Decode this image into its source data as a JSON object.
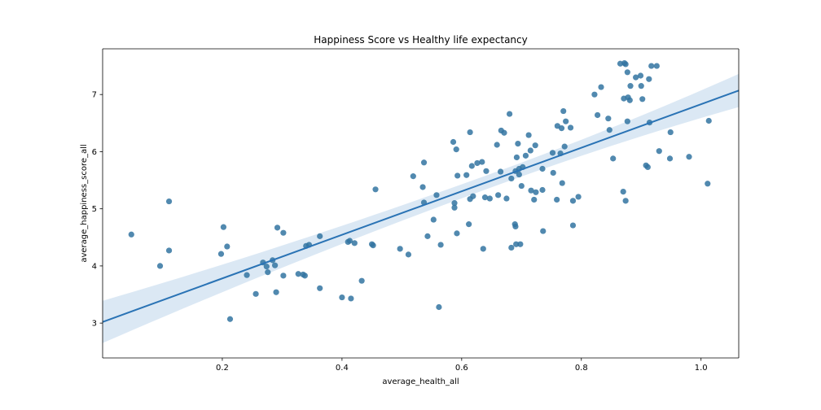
{
  "chart_data": {
    "type": "scatter",
    "title": "Happiness Score vs Healthy life expectancy",
    "xlabel": "average_health_all",
    "ylabel": "average_happiness_score_all",
    "xlim": [
      0.0,
      1.063
    ],
    "ylim": [
      2.39,
      7.8
    ],
    "xticks": [
      0.2,
      0.4,
      0.6,
      0.8,
      1.0
    ],
    "xtick_labels": [
      "0.2",
      "0.4",
      "0.6",
      "0.8",
      "1.0"
    ],
    "yticks": [
      3,
      4,
      5,
      6,
      7
    ],
    "ytick_labels": [
      "3",
      "4",
      "5",
      "6",
      "7"
    ],
    "grid": false,
    "colors": {
      "points": "#3274a1",
      "line": "#2a73b5",
      "band": "#c7dbee"
    },
    "regression": {
      "x": [
        0.0,
        1.063
      ],
      "y": [
        3.02,
        7.07
      ],
      "ci_lower": [
        2.64,
        6.77
      ],
      "ci_upper": [
        3.38,
        7.35
      ]
    },
    "points": [
      {
        "x": 0.048,
        "y": 4.55
      },
      {
        "x": 0.096,
        "y": 4.0
      },
      {
        "x": 0.111,
        "y": 4.27
      },
      {
        "x": 0.111,
        "y": 5.13
      },
      {
        "x": 0.198,
        "y": 4.21
      },
      {
        "x": 0.202,
        "y": 4.68
      },
      {
        "x": 0.208,
        "y": 4.34
      },
      {
        "x": 0.213,
        "y": 3.07
      },
      {
        "x": 0.241,
        "y": 3.84
      },
      {
        "x": 0.256,
        "y": 3.51
      },
      {
        "x": 0.268,
        "y": 4.06
      },
      {
        "x": 0.274,
        "y": 3.99
      },
      {
        "x": 0.276,
        "y": 3.89
      },
      {
        "x": 0.284,
        "y": 4.1
      },
      {
        "x": 0.288,
        "y": 4.01
      },
      {
        "x": 0.29,
        "y": 3.54
      },
      {
        "x": 0.292,
        "y": 4.67
      },
      {
        "x": 0.302,
        "y": 3.83
      },
      {
        "x": 0.302,
        "y": 4.58
      },
      {
        "x": 0.327,
        "y": 3.86
      },
      {
        "x": 0.335,
        "y": 3.85
      },
      {
        "x": 0.338,
        "y": 3.83
      },
      {
        "x": 0.34,
        "y": 4.35
      },
      {
        "x": 0.345,
        "y": 4.37
      },
      {
        "x": 0.363,
        "y": 3.61
      },
      {
        "x": 0.363,
        "y": 4.52
      },
      {
        "x": 0.4,
        "y": 3.45
      },
      {
        "x": 0.41,
        "y": 4.42
      },
      {
        "x": 0.413,
        "y": 4.44
      },
      {
        "x": 0.415,
        "y": 3.43
      },
      {
        "x": 0.421,
        "y": 4.4
      },
      {
        "x": 0.433,
        "y": 3.74
      },
      {
        "x": 0.45,
        "y": 4.38
      },
      {
        "x": 0.452,
        "y": 4.36
      },
      {
        "x": 0.456,
        "y": 5.34
      },
      {
        "x": 0.497,
        "y": 4.3
      },
      {
        "x": 0.511,
        "y": 4.2
      },
      {
        "x": 0.519,
        "y": 5.57
      },
      {
        "x": 0.535,
        "y": 5.38
      },
      {
        "x": 0.537,
        "y": 5.81
      },
      {
        "x": 0.537,
        "y": 5.11
      },
      {
        "x": 0.543,
        "y": 4.52
      },
      {
        "x": 0.553,
        "y": 4.81
      },
      {
        "x": 0.558,
        "y": 5.24
      },
      {
        "x": 0.562,
        "y": 3.28
      },
      {
        "x": 0.565,
        "y": 4.37
      },
      {
        "x": 0.586,
        "y": 6.17
      },
      {
        "x": 0.588,
        "y": 5.1
      },
      {
        "x": 0.588,
        "y": 5.02
      },
      {
        "x": 0.591,
        "y": 6.04
      },
      {
        "x": 0.592,
        "y": 4.57
      },
      {
        "x": 0.593,
        "y": 5.58
      },
      {
        "x": 0.608,
        "y": 5.59
      },
      {
        "x": 0.612,
        "y": 4.73
      },
      {
        "x": 0.614,
        "y": 6.34
      },
      {
        "x": 0.614,
        "y": 5.17
      },
      {
        "x": 0.617,
        "y": 5.75
      },
      {
        "x": 0.619,
        "y": 5.22
      },
      {
        "x": 0.626,
        "y": 5.8
      },
      {
        "x": 0.634,
        "y": 5.82
      },
      {
        "x": 0.636,
        "y": 4.3
      },
      {
        "x": 0.639,
        "y": 5.2
      },
      {
        "x": 0.641,
        "y": 5.66
      },
      {
        "x": 0.647,
        "y": 5.18
      },
      {
        "x": 0.659,
        "y": 6.12
      },
      {
        "x": 0.661,
        "y": 5.24
      },
      {
        "x": 0.665,
        "y": 5.65
      },
      {
        "x": 0.666,
        "y": 6.37
      },
      {
        "x": 0.671,
        "y": 6.33
      },
      {
        "x": 0.675,
        "y": 5.18
      },
      {
        "x": 0.68,
        "y": 6.66
      },
      {
        "x": 0.683,
        "y": 5.53
      },
      {
        "x": 0.683,
        "y": 4.32
      },
      {
        "x": 0.689,
        "y": 4.73
      },
      {
        "x": 0.69,
        "y": 5.66
      },
      {
        "x": 0.69,
        "y": 4.69
      },
      {
        "x": 0.691,
        "y": 4.38
      },
      {
        "x": 0.692,
        "y": 5.9
      },
      {
        "x": 0.694,
        "y": 6.14
      },
      {
        "x": 0.696,
        "y": 5.7
      },
      {
        "x": 0.696,
        "y": 5.6
      },
      {
        "x": 0.698,
        "y": 4.38
      },
      {
        "x": 0.7,
        "y": 5.4
      },
      {
        "x": 0.702,
        "y": 5.73
      },
      {
        "x": 0.707,
        "y": 5.93
      },
      {
        "x": 0.712,
        "y": 6.29
      },
      {
        "x": 0.715,
        "y": 6.02
      },
      {
        "x": 0.716,
        "y": 5.32
      },
      {
        "x": 0.721,
        "y": 5.16
      },
      {
        "x": 0.723,
        "y": 6.11
      },
      {
        "x": 0.724,
        "y": 5.29
      },
      {
        "x": 0.735,
        "y": 5.7
      },
      {
        "x": 0.735,
        "y": 5.33
      },
      {
        "x": 0.736,
        "y": 4.61
      },
      {
        "x": 0.752,
        "y": 5.98
      },
      {
        "x": 0.753,
        "y": 5.63
      },
      {
        "x": 0.759,
        "y": 5.16
      },
      {
        "x": 0.76,
        "y": 6.45
      },
      {
        "x": 0.765,
        "y": 5.97
      },
      {
        "x": 0.767,
        "y": 6.41
      },
      {
        "x": 0.768,
        "y": 5.45
      },
      {
        "x": 0.77,
        "y": 6.71
      },
      {
        "x": 0.772,
        "y": 6.09
      },
      {
        "x": 0.774,
        "y": 6.53
      },
      {
        "x": 0.782,
        "y": 6.42
      },
      {
        "x": 0.786,
        "y": 4.71
      },
      {
        "x": 0.786,
        "y": 5.14
      },
      {
        "x": 0.795,
        "y": 5.21
      },
      {
        "x": 0.822,
        "y": 7.0
      },
      {
        "x": 0.827,
        "y": 6.64
      },
      {
        "x": 0.833,
        "y": 7.13
      },
      {
        "x": 0.845,
        "y": 6.58
      },
      {
        "x": 0.847,
        "y": 6.38
      },
      {
        "x": 0.853,
        "y": 5.88
      },
      {
        "x": 0.865,
        "y": 7.54
      },
      {
        "x": 0.87,
        "y": 5.3
      },
      {
        "x": 0.871,
        "y": 6.93
      },
      {
        "x": 0.872,
        "y": 7.55
      },
      {
        "x": 0.874,
        "y": 7.53
      },
      {
        "x": 0.874,
        "y": 5.14
      },
      {
        "x": 0.877,
        "y": 7.39
      },
      {
        "x": 0.877,
        "y": 6.53
      },
      {
        "x": 0.878,
        "y": 6.95
      },
      {
        "x": 0.881,
        "y": 6.9
      },
      {
        "x": 0.882,
        "y": 7.15
      },
      {
        "x": 0.891,
        "y": 7.3
      },
      {
        "x": 0.899,
        "y": 7.33
      },
      {
        "x": 0.9,
        "y": 7.15
      },
      {
        "x": 0.902,
        "y": 6.92
      },
      {
        "x": 0.908,
        "y": 5.76
      },
      {
        "x": 0.911,
        "y": 5.73
      },
      {
        "x": 0.913,
        "y": 7.27
      },
      {
        "x": 0.914,
        "y": 6.51
      },
      {
        "x": 0.917,
        "y": 7.5
      },
      {
        "x": 0.926,
        "y": 7.5
      },
      {
        "x": 0.93,
        "y": 6.01
      },
      {
        "x": 0.948,
        "y": 5.88
      },
      {
        "x": 0.949,
        "y": 6.34
      },
      {
        "x": 0.98,
        "y": 5.91
      },
      {
        "x": 1.011,
        "y": 5.44
      },
      {
        "x": 1.013,
        "y": 6.54
      }
    ]
  }
}
